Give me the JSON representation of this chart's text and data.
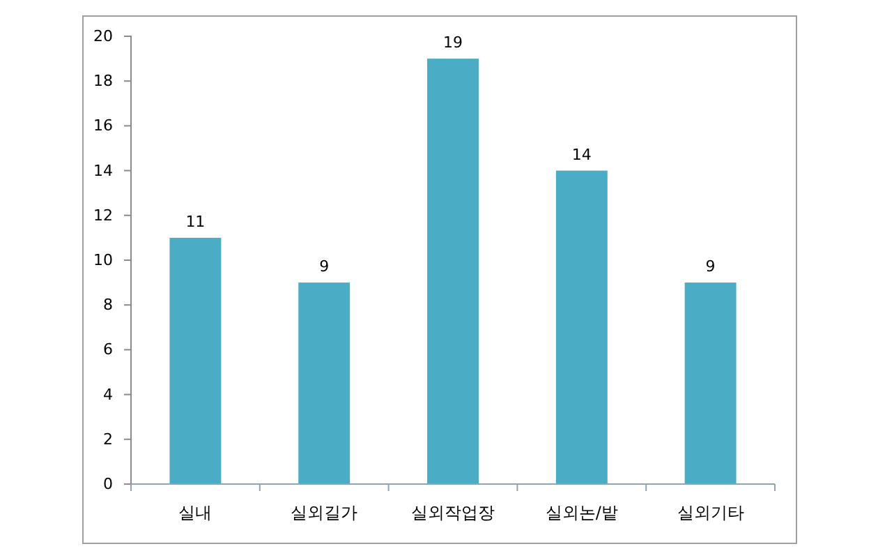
{
  "chart_data": {
    "type": "bar",
    "categories": [
      "실내",
      "실외길가",
      "실외작업장",
      "실외논/밭",
      "실외기타"
    ],
    "values": [
      11,
      9,
      19,
      14,
      9
    ],
    "color": "#4bacc6",
    "ylim": [
      0,
      20
    ],
    "yticks": [
      0,
      2,
      4,
      6,
      8,
      10,
      12,
      14,
      16,
      18,
      20
    ],
    "grid": false,
    "data_labels": true
  }
}
